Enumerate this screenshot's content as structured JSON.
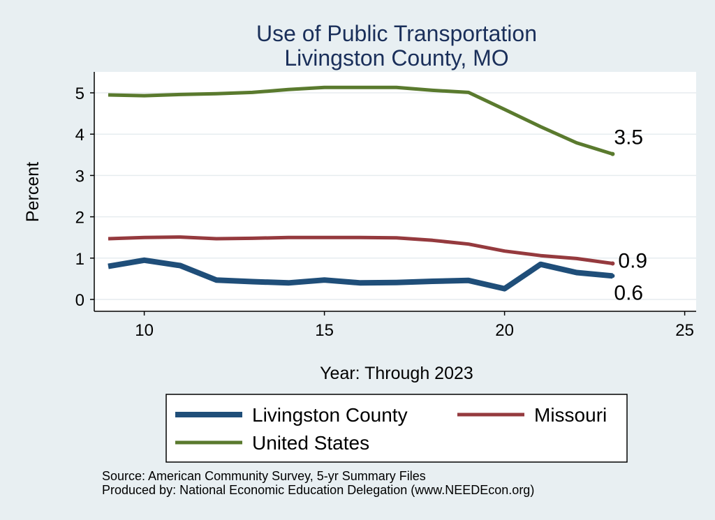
{
  "chart_data": {
    "type": "line",
    "title": [
      "Use of Public Transportation",
      "Livingston County, MO"
    ],
    "xlabel": "Year: Through 2023",
    "ylabel": "Percent",
    "xlim": [
      9,
      25
    ],
    "ylim": [
      0,
      5
    ],
    "xticks": [
      10,
      15,
      20,
      25
    ],
    "yticks": [
      0,
      1,
      2,
      3,
      4,
      5
    ],
    "grid": true,
    "legend_position": "bottom",
    "series": [
      {
        "name": "Livingston County",
        "color": "#1f4e79",
        "x": [
          9,
          10,
          11,
          12,
          13,
          14,
          15,
          16,
          17,
          18,
          19,
          20,
          21,
          22,
          23
        ],
        "y": [
          0.8,
          0.95,
          0.82,
          0.47,
          0.43,
          0.4,
          0.47,
          0.4,
          0.41,
          0.44,
          0.46,
          0.26,
          0.85,
          0.65,
          0.57
        ],
        "end_label": "0.6"
      },
      {
        "name": "Missouri",
        "color": "#953a3e",
        "x": [
          9,
          10,
          11,
          12,
          13,
          14,
          15,
          16,
          17,
          18,
          19,
          20,
          21,
          22,
          23
        ],
        "y": [
          1.47,
          1.5,
          1.51,
          1.47,
          1.48,
          1.5,
          1.5,
          1.5,
          1.49,
          1.43,
          1.34,
          1.17,
          1.06,
          0.99,
          0.87
        ],
        "end_label": "0.9"
      },
      {
        "name": "United States",
        "color": "#5a7a2e",
        "x": [
          9,
          10,
          11,
          12,
          13,
          14,
          15,
          16,
          17,
          18,
          19,
          20,
          21,
          22,
          23
        ],
        "y": [
          4.95,
          4.93,
          4.96,
          4.98,
          5.01,
          5.08,
          5.13,
          5.13,
          5.13,
          5.06,
          5.01,
          4.6,
          4.18,
          3.79,
          3.52
        ],
        "end_label": "3.5"
      }
    ],
    "source": "Source: American Community Survey, 5-yr Summary Files",
    "producer": "Produced by: National Economic Education Delegation (www.NEEDEcon.org)"
  }
}
